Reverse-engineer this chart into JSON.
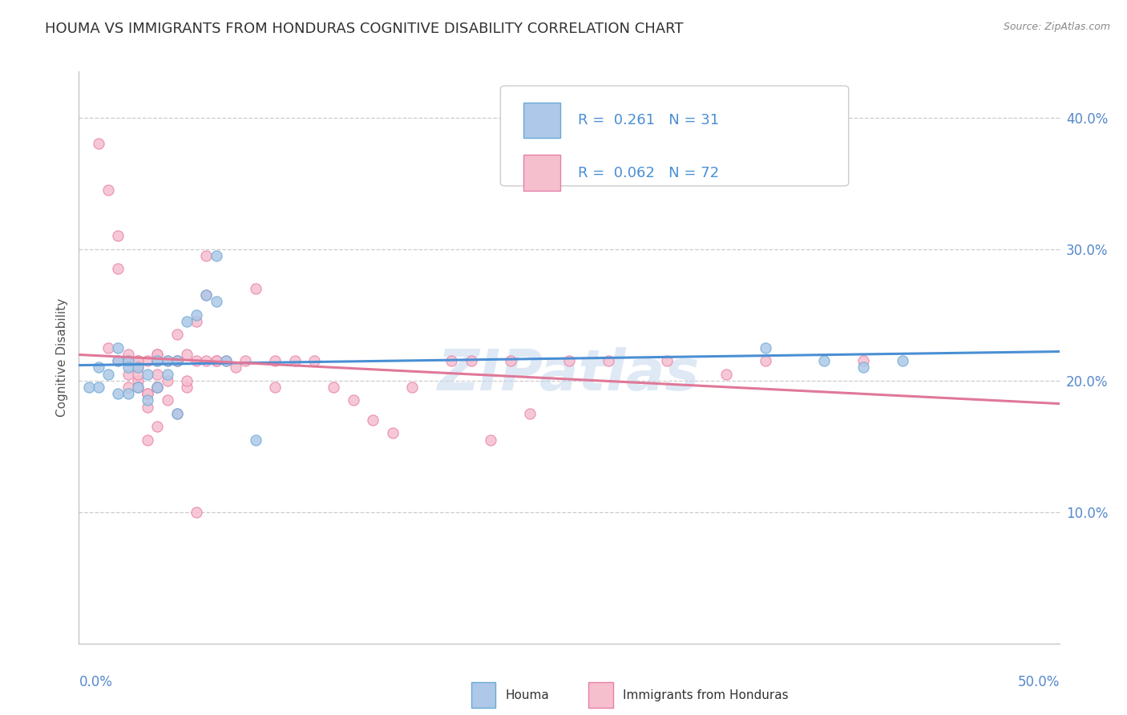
{
  "title": "HOUMA VS IMMIGRANTS FROM HONDURAS COGNITIVE DISABILITY CORRELATION CHART",
  "source_text": "Source: ZipAtlas.com",
  "ylabel": "Cognitive Disability",
  "right_yticks": [
    "40.0%",
    "30.0%",
    "20.0%",
    "10.0%"
  ],
  "right_ytick_vals": [
    0.4,
    0.3,
    0.2,
    0.1
  ],
  "xmin": 0.0,
  "xmax": 0.5,
  "ymin": 0.0,
  "ymax": 0.435,
  "legend_line1": "R =  0.261   N = 31",
  "legend_line2": "R =  0.062   N = 72",
  "color_houma_fill": "#adc8e8",
  "color_houma_edge": "#6aaad4",
  "color_honduras_fill": "#f5bfce",
  "color_honduras_edge": "#e87fa8",
  "color_line_houma": "#4a8fd4",
  "color_line_honduras": "#e07898",
  "color_title": "#333333",
  "color_axis_text": "#5588cc",
  "color_source": "#888888",
  "color_legend_R": "#333333",
  "color_legend_N": "#4a8fd4",
  "color_watermark": "#c5d8ee",
  "watermark": "ZIPatlas",
  "houma_x": [
    0.005,
    0.01,
    0.01,
    0.015,
    0.02,
    0.02,
    0.02,
    0.025,
    0.025,
    0.025,
    0.03,
    0.03,
    0.035,
    0.035,
    0.04,
    0.04,
    0.045,
    0.045,
    0.05,
    0.05,
    0.055,
    0.06,
    0.065,
    0.07,
    0.07,
    0.075,
    0.09,
    0.35,
    0.38,
    0.4,
    0.42
  ],
  "houma_y": [
    0.195,
    0.21,
    0.195,
    0.205,
    0.225,
    0.215,
    0.19,
    0.215,
    0.21,
    0.19,
    0.21,
    0.195,
    0.205,
    0.185,
    0.215,
    0.195,
    0.215,
    0.205,
    0.215,
    0.175,
    0.245,
    0.25,
    0.265,
    0.295,
    0.26,
    0.215,
    0.155,
    0.225,
    0.215,
    0.21,
    0.215
  ],
  "honduras_x": [
    0.01,
    0.015,
    0.02,
    0.02,
    0.025,
    0.025,
    0.025,
    0.03,
    0.03,
    0.03,
    0.035,
    0.035,
    0.04,
    0.04,
    0.04,
    0.04,
    0.045,
    0.045,
    0.05,
    0.05,
    0.055,
    0.055,
    0.06,
    0.065,
    0.065,
    0.07,
    0.075,
    0.08,
    0.085,
    0.09,
    0.1,
    0.1,
    0.11,
    0.12,
    0.13,
    0.14,
    0.15,
    0.16,
    0.17,
    0.19,
    0.2,
    0.21,
    0.22,
    0.23,
    0.25,
    0.27,
    0.3,
    0.33,
    0.35,
    0.4,
    0.015,
    0.02,
    0.025,
    0.03,
    0.035,
    0.04,
    0.05,
    0.06,
    0.07,
    0.025,
    0.03,
    0.035,
    0.04,
    0.025,
    0.03,
    0.035,
    0.04,
    0.045,
    0.05,
    0.055,
    0.06,
    0.065
  ],
  "honduras_y": [
    0.38,
    0.345,
    0.31,
    0.285,
    0.215,
    0.215,
    0.215,
    0.215,
    0.21,
    0.2,
    0.215,
    0.19,
    0.22,
    0.215,
    0.205,
    0.195,
    0.215,
    0.2,
    0.235,
    0.215,
    0.22,
    0.195,
    0.245,
    0.295,
    0.265,
    0.215,
    0.215,
    0.21,
    0.215,
    0.27,
    0.215,
    0.195,
    0.215,
    0.215,
    0.195,
    0.185,
    0.17,
    0.16,
    0.195,
    0.215,
    0.215,
    0.155,
    0.215,
    0.175,
    0.215,
    0.215,
    0.215,
    0.205,
    0.215,
    0.215,
    0.225,
    0.215,
    0.205,
    0.195,
    0.155,
    0.165,
    0.215,
    0.1,
    0.215,
    0.22,
    0.215,
    0.19,
    0.22,
    0.195,
    0.205,
    0.18,
    0.195,
    0.185,
    0.175,
    0.2,
    0.215,
    0.215
  ]
}
